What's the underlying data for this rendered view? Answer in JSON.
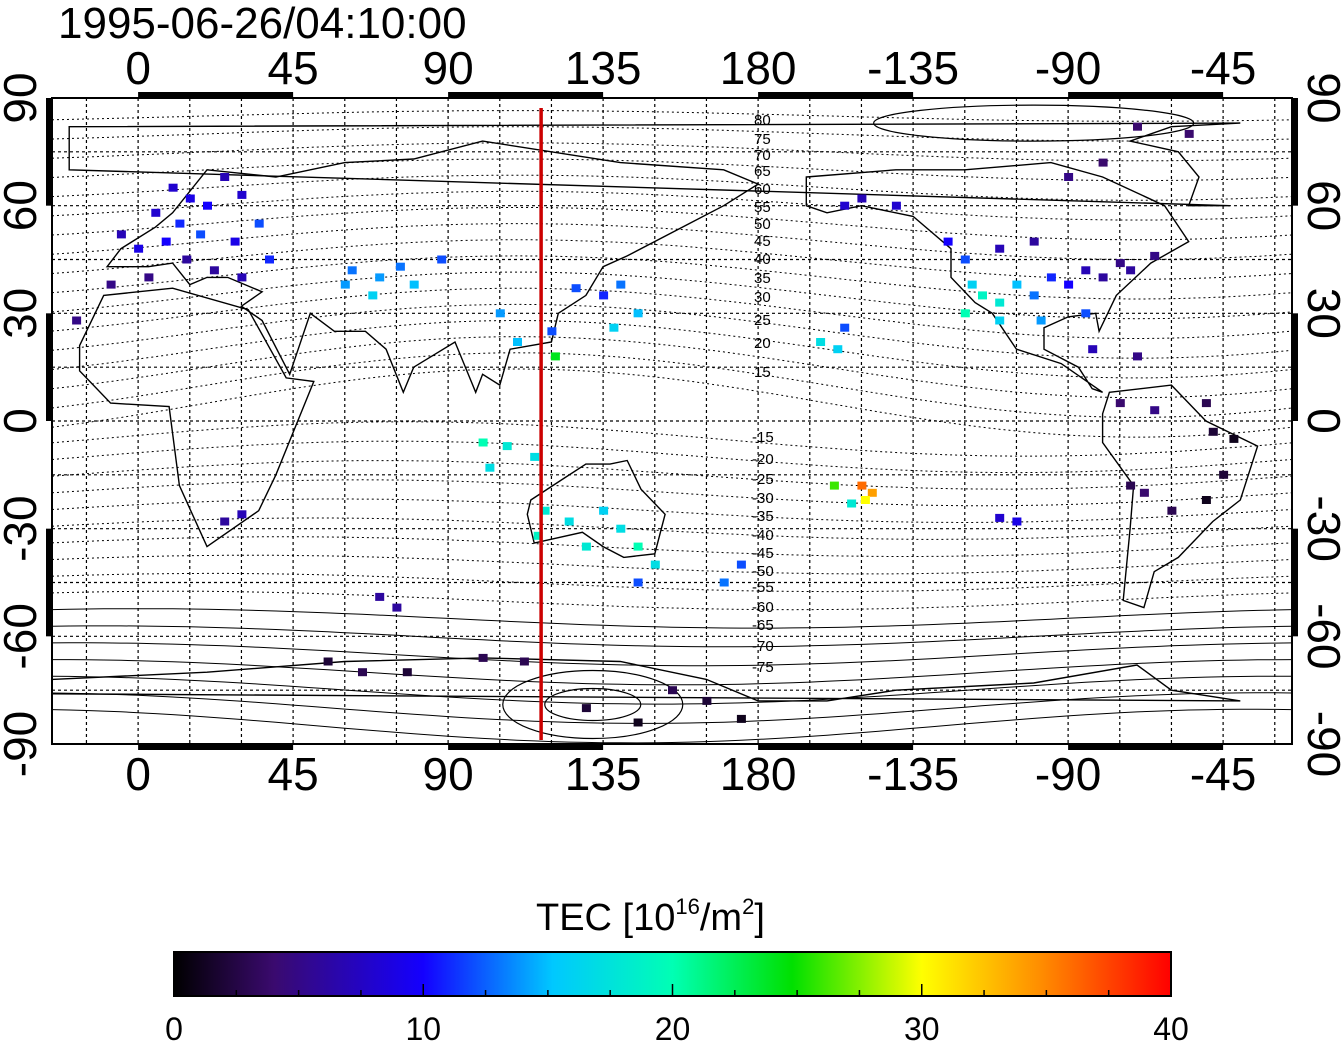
{
  "title": "1995-06-26/04:10:00",
  "map": {
    "lon_labels": [
      "0",
      "45",
      "90",
      "135",
      "180",
      "-135",
      "-90",
      "-45"
    ],
    "lat_labels": [
      "90",
      "60",
      "30",
      "0",
      "-30",
      "-60",
      "-90"
    ],
    "terminator_lon": 117,
    "mlat_labels_north": [
      "80",
      "75",
      "70",
      "65",
      "60",
      "55",
      "50",
      "45",
      "40",
      "35",
      "30",
      "25",
      "20",
      "15"
    ],
    "mlat_labels_south": [
      "-15",
      "-20",
      "-25",
      "-30",
      "-35",
      "-40",
      "-45",
      "-50",
      "-55",
      "-60",
      "-65",
      "-70",
      "-75"
    ],
    "colors": {
      "terminator": "#cc0000",
      "coast": "#000000",
      "grid": "#000000"
    }
  },
  "colorbar": {
    "title_main": "TEC  [10",
    "title_sup1": "16",
    "title_mid": "/m",
    "title_sup2": "2",
    "title_end": "]",
    "min": 0,
    "max": 40,
    "tick_labels": [
      "0",
      "10",
      "20",
      "30",
      "40"
    ]
  },
  "tec_points": [
    {
      "lon": 10,
      "lat": 65,
      "v": 8
    },
    {
      "lon": 15,
      "lat": 62,
      "v": 9
    },
    {
      "lon": 20,
      "lat": 60,
      "v": 10
    },
    {
      "lon": 5,
      "lat": 58,
      "v": 8
    },
    {
      "lon": 12,
      "lat": 55,
      "v": 11
    },
    {
      "lon": 18,
      "lat": 52,
      "v": 12
    },
    {
      "lon": 25,
      "lat": 68,
      "v": 7
    },
    {
      "lon": 30,
      "lat": 63,
      "v": 8
    },
    {
      "lon": 8,
      "lat": 50,
      "v": 10
    },
    {
      "lon": 0,
      "lat": 48,
      "v": 9
    },
    {
      "lon": -5,
      "lat": 52,
      "v": 7
    },
    {
      "lon": 14,
      "lat": 45,
      "v": 6
    },
    {
      "lon": 22,
      "lat": 42,
      "v": 6
    },
    {
      "lon": 35,
      "lat": 55,
      "v": 12
    },
    {
      "lon": 28,
      "lat": 50,
      "v": 9
    },
    {
      "lon": 3,
      "lat": 40,
      "v": 5
    },
    {
      "lon": -8,
      "lat": 38,
      "v": 5
    },
    {
      "lon": -18,
      "lat": 28,
      "v": 5
    },
    {
      "lon": 30,
      "lat": 40,
      "v": 7
    },
    {
      "lon": 38,
      "lat": 45,
      "v": 11
    },
    {
      "lon": 62,
      "lat": 42,
      "v": 13
    },
    {
      "lon": 70,
      "lat": 40,
      "v": 14
    },
    {
      "lon": 76,
      "lat": 43,
      "v": 13
    },
    {
      "lon": 80,
      "lat": 38,
      "v": 15
    },
    {
      "lon": 68,
      "lat": 35,
      "v": 16
    },
    {
      "lon": 60,
      "lat": 38,
      "v": 14
    },
    {
      "lon": 88,
      "lat": 45,
      "v": 12
    },
    {
      "lon": 105,
      "lat": 30,
      "v": 14
    },
    {
      "lon": 110,
      "lat": 22,
      "v": 15
    },
    {
      "lon": 120,
      "lat": 25,
      "v": 12
    },
    {
      "lon": 127,
      "lat": 37,
      "v": 12
    },
    {
      "lon": 135,
      "lat": 35,
      "v": 11
    },
    {
      "lon": 140,
      "lat": 38,
      "v": 13
    },
    {
      "lon": 145,
      "lat": 30,
      "v": 15
    },
    {
      "lon": 138,
      "lat": 26,
      "v": 16
    },
    {
      "lon": 121,
      "lat": 18,
      "v": 24
    },
    {
      "lon": 100,
      "lat": -6,
      "v": 20
    },
    {
      "lon": 107,
      "lat": -7,
      "v": 18
    },
    {
      "lon": 115,
      "lat": -10,
      "v": 17
    },
    {
      "lon": 102,
      "lat": -13,
      "v": 17
    },
    {
      "lon": 118,
      "lat": -25,
      "v": 18
    },
    {
      "lon": 125,
      "lat": -28,
      "v": 17
    },
    {
      "lon": 135,
      "lat": -25,
      "v": 16
    },
    {
      "lon": 140,
      "lat": -30,
      "v": 17
    },
    {
      "lon": 130,
      "lat": -35,
      "v": 18
    },
    {
      "lon": 116,
      "lat": -32,
      "v": 19
    },
    {
      "lon": 145,
      "lat": -35,
      "v": 20
    },
    {
      "lon": 150,
      "lat": -40,
      "v": 17
    },
    {
      "lon": 145,
      "lat": -45,
      "v": 12
    },
    {
      "lon": 170,
      "lat": -45,
      "v": 13
    },
    {
      "lon": 175,
      "lat": -40,
      "v": 12
    },
    {
      "lon": 30,
      "lat": -26,
      "v": 7
    },
    {
      "lon": 25,
      "lat": -28,
      "v": 6
    },
    {
      "lon": 70,
      "lat": -49,
      "v": 6
    },
    {
      "lon": 75,
      "lat": -52,
      "v": 6
    },
    {
      "lon": 55,
      "lat": -67,
      "v": 2
    },
    {
      "lon": 65,
      "lat": -70,
      "v": 3
    },
    {
      "lon": 78,
      "lat": -70,
      "v": 2
    },
    {
      "lon": 100,
      "lat": -66,
      "v": 3
    },
    {
      "lon": 112,
      "lat": -67,
      "v": 3
    },
    {
      "lon": 130,
      "lat": -80,
      "v": 2
    },
    {
      "lon": 145,
      "lat": -84,
      "v": 1
    },
    {
      "lon": 165,
      "lat": -78,
      "v": 2
    },
    {
      "lon": 175,
      "lat": -83,
      "v": 1
    },
    {
      "lon": 155,
      "lat": -75,
      "v": 3
    },
    {
      "lon": -155,
      "lat": 60,
      "v": 8
    },
    {
      "lon": -150,
      "lat": 62,
      "v": 7
    },
    {
      "lon": -140,
      "lat": 60,
      "v": 8
    },
    {
      "lon": -125,
      "lat": 50,
      "v": 10
    },
    {
      "lon": -120,
      "lat": 45,
      "v": 12
    },
    {
      "lon": -118,
      "lat": 38,
      "v": 16
    },
    {
      "lon": -115,
      "lat": 35,
      "v": 19
    },
    {
      "lon": -110,
      "lat": 33,
      "v": 18
    },
    {
      "lon": -105,
      "lat": 38,
      "v": 15
    },
    {
      "lon": -100,
      "lat": 35,
      "v": 13
    },
    {
      "lon": -95,
      "lat": 40,
      "v": 11
    },
    {
      "lon": -90,
      "lat": 38,
      "v": 10
    },
    {
      "lon": -85,
      "lat": 42,
      "v": 7
    },
    {
      "lon": -80,
      "lat": 40,
      "v": 6
    },
    {
      "lon": -75,
      "lat": 44,
      "v": 5
    },
    {
      "lon": -110,
      "lat": 48,
      "v": 7
    },
    {
      "lon": -100,
      "lat": 50,
      "v": 6
    },
    {
      "lon": -120,
      "lat": 30,
      "v": 20
    },
    {
      "lon": -110,
      "lat": 28,
      "v": 16
    },
    {
      "lon": -98,
      "lat": 28,
      "v": 14
    },
    {
      "lon": -85,
      "lat": 30,
      "v": 12
    },
    {
      "lon": -72,
      "lat": 42,
      "v": 6
    },
    {
      "lon": -65,
      "lat": 46,
      "v": 5
    },
    {
      "lon": -90,
      "lat": 68,
      "v": 5
    },
    {
      "lon": -80,
      "lat": 72,
      "v": 4
    },
    {
      "lon": -70,
      "lat": 82,
      "v": 4
    },
    {
      "lon": -55,
      "lat": 80,
      "v": 4
    },
    {
      "lon": -83,
      "lat": 20,
      "v": 7
    },
    {
      "lon": -70,
      "lat": 18,
      "v": 5
    },
    {
      "lon": -75,
      "lat": 5,
      "v": 4
    },
    {
      "lon": -65,
      "lat": 3,
      "v": 5
    },
    {
      "lon": -50,
      "lat": 5,
      "v": 3
    },
    {
      "lon": -48,
      "lat": -3,
      "v": 2
    },
    {
      "lon": -42,
      "lat": -5,
      "v": 1
    },
    {
      "lon": -45,
      "lat": -15,
      "v": 2
    },
    {
      "lon": -50,
      "lat": -22,
      "v": 1
    },
    {
      "lon": -68,
      "lat": -20,
      "v": 4
    },
    {
      "lon": -72,
      "lat": -18,
      "v": 3
    },
    {
      "lon": -60,
      "lat": -25,
      "v": 3
    },
    {
      "lon": -110,
      "lat": -27,
      "v": 8
    },
    {
      "lon": -105,
      "lat": -28,
      "v": 9
    },
    {
      "lon": -150,
      "lat": -18,
      "v": 36
    },
    {
      "lon": -147,
      "lat": -20,
      "v": 34
    },
    {
      "lon": -149,
      "lat": -22,
      "v": 30
    },
    {
      "lon": -153,
      "lat": -23,
      "v": 18
    },
    {
      "lon": -158,
      "lat": -18,
      "v": 26
    },
    {
      "lon": -162,
      "lat": 22,
      "v": 17
    },
    {
      "lon": -157,
      "lat": 20,
      "v": 16
    },
    {
      "lon": -155,
      "lat": 26,
      "v": 12
    }
  ]
}
